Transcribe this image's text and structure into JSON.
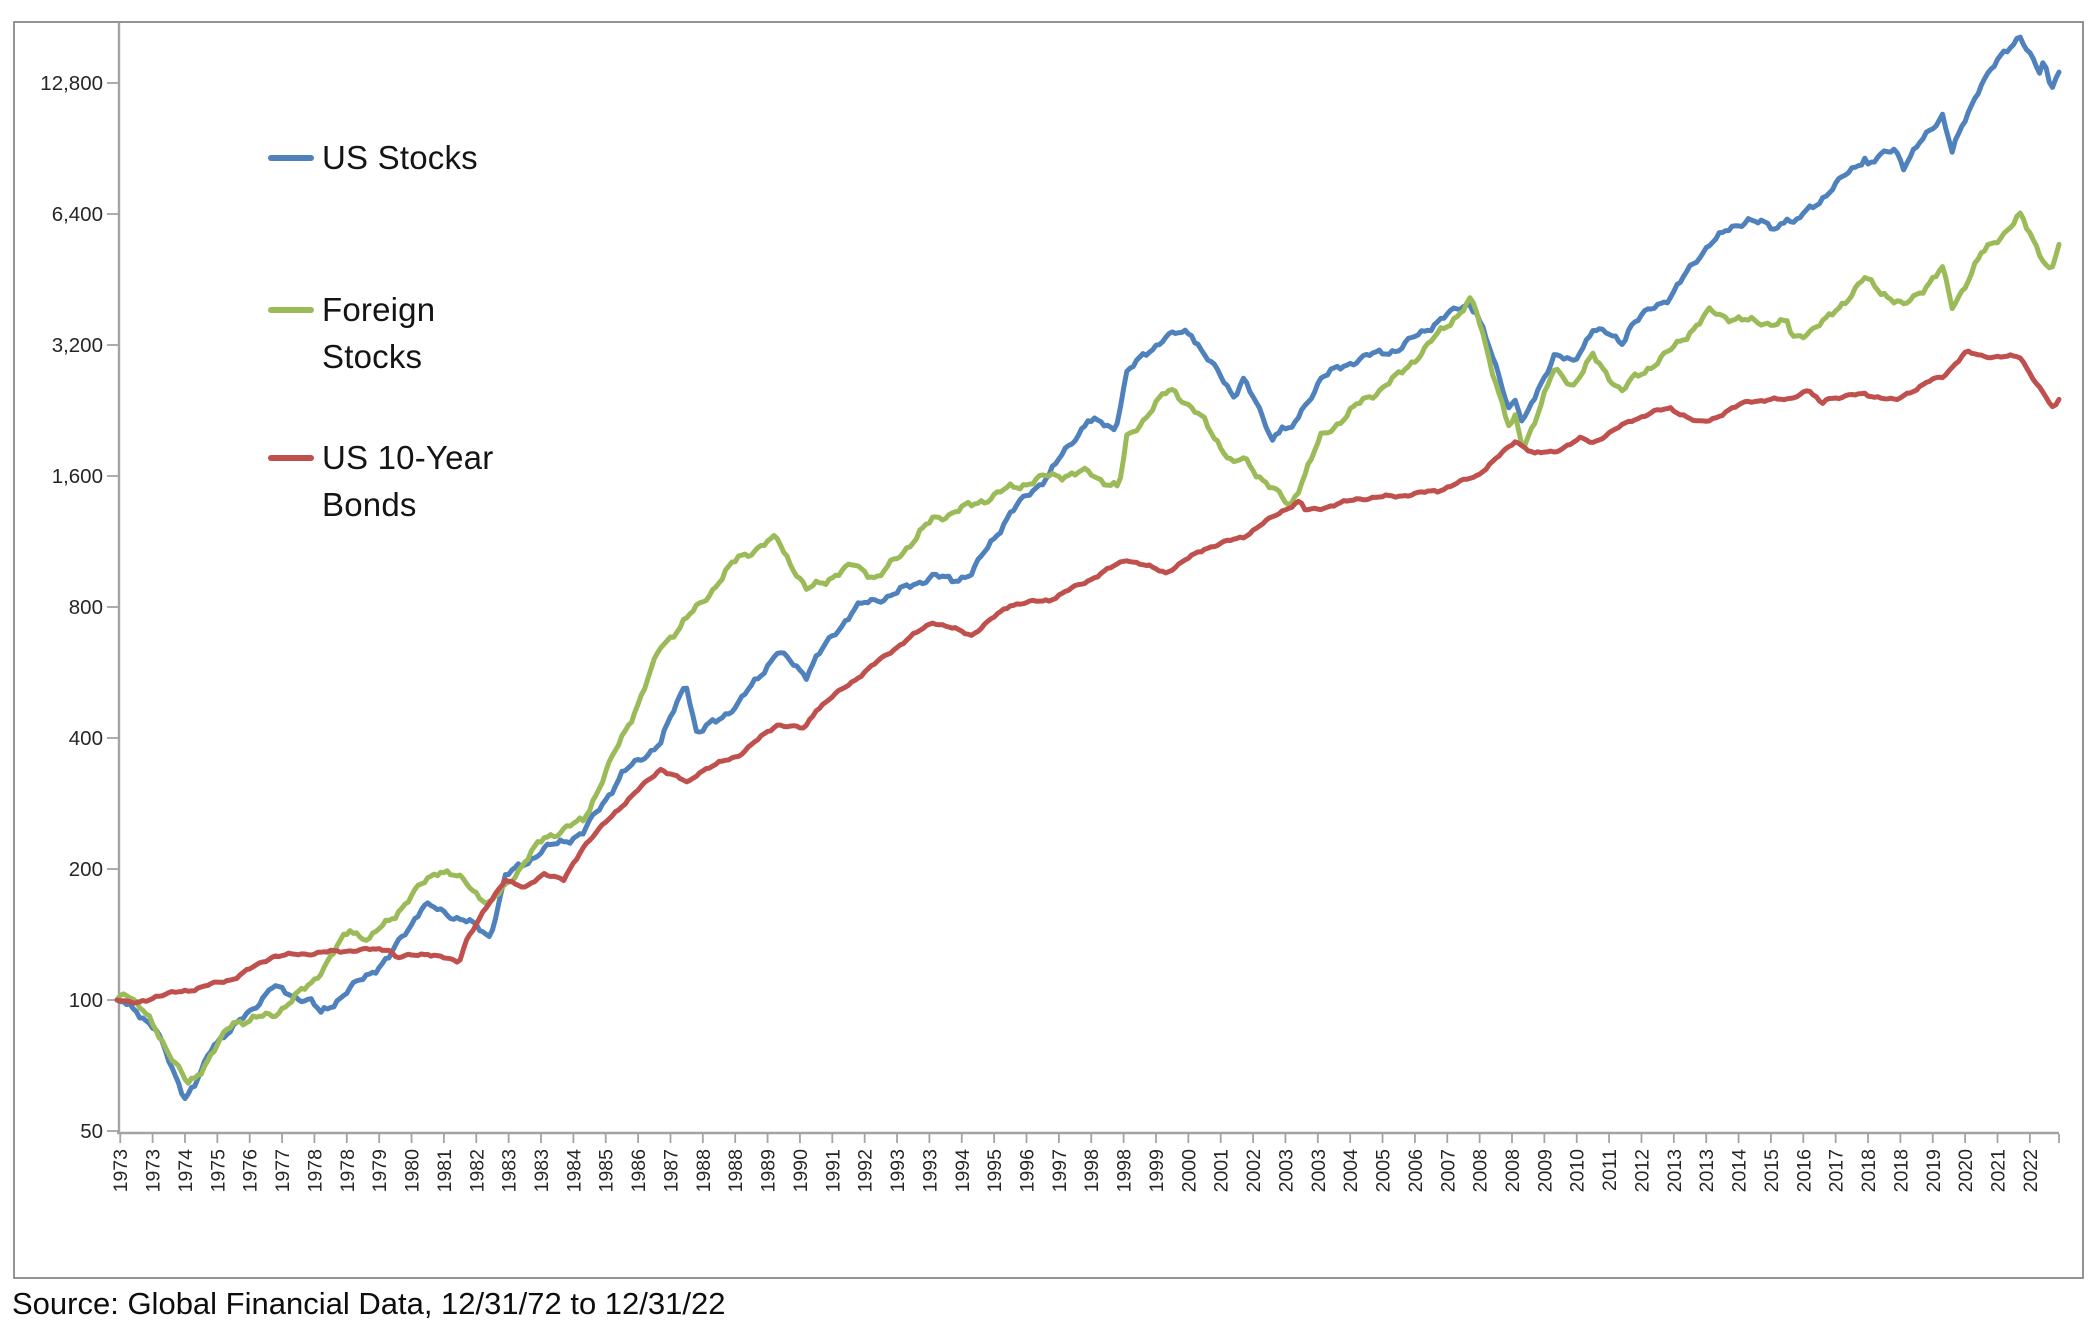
{
  "chart": {
    "legend": [
      {
        "label": "US Stocks",
        "color": "#4F81BD"
      },
      {
        "label": "Foreign Stocks",
        "color": "#9BBB59"
      },
      {
        "label": "US 10-Year Bonds",
        "color": "#C0504D"
      }
    ],
    "source_note": "Source: Global Financial Data, 12/31/72 to 12/31/22",
    "y_axis": {
      "ticks": [
        {
          "label": "12,800",
          "value": 12800
        },
        {
          "label": "6,400",
          "value": 6400
        },
        {
          "label": "3,200",
          "value": 3200
        },
        {
          "label": "1,600",
          "value": 1600
        },
        {
          "label": "800",
          "value": 800
        },
        {
          "label": "400",
          "value": 400
        },
        {
          "label": "200",
          "value": 200
        },
        {
          "label": "100",
          "value": 100
        },
        {
          "label": "50",
          "value": 50
        }
      ]
    },
    "x_axis": {
      "labels": [
        "1973",
        "1973",
        "1974",
        "1975",
        "1976",
        "1977",
        "1978",
        "1978",
        "1979",
        "1980",
        "1981",
        "1982",
        "1983",
        "1983",
        "1984",
        "1985",
        "1986",
        "1987",
        "1988",
        "1988",
        "1989",
        "1990",
        "1991",
        "1992",
        "1993",
        "1993",
        "1994",
        "1995",
        "1996",
        "1997",
        "1998",
        "1998",
        "1999",
        "2000",
        "2001",
        "2002",
        "2003",
        "2003",
        "2004",
        "2005",
        "2006",
        "2007",
        "2008",
        "2008",
        "2009",
        "2010",
        "2011",
        "2012",
        "2013",
        "2013",
        "2014",
        "2015",
        "2016",
        "2017",
        "2018",
        "2018",
        "2019",
        "2020",
        "2021",
        "2022"
      ]
    }
  },
  "chart_data": {
    "type": "line",
    "title": "",
    "xlabel": "",
    "ylabel": "",
    "x_range": "12/31/1972 to 12/31/2022, monthly",
    "y_scale": "log2",
    "ylim": [
      50,
      17000
    ],
    "legend_position": "upper-left",
    "grid": false,
    "x_note": "anchor x is decimal year; 1973.0 = 12/31/1972, 2023.0 = 12/31/2022; values = growth of $100",
    "series": [
      {
        "name": "US Stocks",
        "color": "#4F81BD",
        "anchors": [
          [
            1973,
            100
          ],
          [
            1973.5,
            95
          ],
          [
            1974,
            85
          ],
          [
            1974.75,
            60
          ],
          [
            1975,
            63
          ],
          [
            1975.5,
            80
          ],
          [
            1976,
            86
          ],
          [
            1977,
            107
          ],
          [
            1978,
            99
          ],
          [
            1978.25,
            93
          ],
          [
            1979,
            106
          ],
          [
            1980,
            125
          ],
          [
            1980.9,
            166
          ],
          [
            1981,
            164
          ],
          [
            1982,
            152
          ],
          [
            1982.6,
            140
          ],
          [
            1983,
            192
          ],
          [
            1984,
            222
          ],
          [
            1985,
            242
          ],
          [
            1986,
            330
          ],
          [
            1987,
            391
          ],
          [
            1987.65,
            540
          ],
          [
            1987.95,
            400
          ],
          [
            1988,
            411
          ],
          [
            1989,
            479
          ],
          [
            1990,
            631
          ],
          [
            1990.75,
            560
          ],
          [
            1991,
            611
          ],
          [
            1992,
            797
          ],
          [
            1993,
            858
          ],
          [
            1994,
            944
          ],
          [
            1994.5,
            920
          ],
          [
            1995,
            957
          ],
          [
            1996,
            1316
          ],
          [
            1997,
            1618
          ],
          [
            1998,
            2157
          ],
          [
            1998.7,
            2050
          ],
          [
            1999,
            2774
          ],
          [
            2000,
            3357
          ],
          [
            2000.65,
            3420
          ],
          [
            2001,
            3051
          ],
          [
            2001.75,
            2450
          ],
          [
            2002,
            2688
          ],
          [
            2002.75,
            1950
          ],
          [
            2003,
            2094
          ],
          [
            2003.2,
            2010
          ],
          [
            2004,
            2694
          ],
          [
            2005,
            2987
          ],
          [
            2006,
            3134
          ],
          [
            2007,
            3629
          ],
          [
            2007.8,
            4000
          ],
          [
            2008,
            3828
          ],
          [
            2008.85,
            2300
          ],
          [
            2009,
            2412
          ],
          [
            2009.2,
            2100
          ],
          [
            2010,
            3050
          ],
          [
            2010.5,
            2900
          ],
          [
            2011,
            3509
          ],
          [
            2011.75,
            3250
          ],
          [
            2012,
            3582
          ],
          [
            2013,
            4155
          ],
          [
            2014,
            5500
          ],
          [
            2015,
            6253
          ],
          [
            2015.7,
            5900
          ],
          [
            2016,
            6340
          ],
          [
            2016.15,
            6050
          ],
          [
            2017,
            7098
          ],
          [
            2018,
            8645
          ],
          [
            2018.1,
            8300
          ],
          [
            2018.78,
            9100
          ],
          [
            2019,
            8266
          ],
          [
            2020,
            10868
          ],
          [
            2020.25,
            8900
          ],
          [
            2021,
            12868
          ],
          [
            2022,
            16560
          ],
          [
            2022.1,
            15800
          ],
          [
            2022.5,
            13400
          ],
          [
            2022.6,
            14300
          ],
          [
            2022.8,
            12500
          ],
          [
            2023,
            13560
          ]
        ]
      },
      {
        "name": "Foreign Stocks",
        "color": "#9BBB59",
        "anchors": [
          [
            1973,
            100
          ],
          [
            1973.2,
            106
          ],
          [
            1974,
            86
          ],
          [
            1974.8,
            64
          ],
          [
            1975,
            66
          ],
          [
            1976,
            89
          ],
          [
            1977,
            92
          ],
          [
            1978,
            109
          ],
          [
            1979,
            145
          ],
          [
            1979.5,
            138
          ],
          [
            1980,
            152
          ],
          [
            1981,
            190
          ],
          [
            1981.3,
            200
          ],
          [
            1982,
            186
          ],
          [
            1982.6,
            165
          ],
          [
            1983,
            183
          ],
          [
            1984,
            236
          ],
          [
            1985,
            258
          ],
          [
            1986,
            400
          ],
          [
            1986.5,
            500
          ],
          [
            1987,
            648
          ],
          [
            1988,
            808
          ],
          [
            1989,
            1040
          ],
          [
            1990,
            1150
          ],
          [
            1990.75,
            870
          ],
          [
            1991,
            900
          ],
          [
            1992,
            1000
          ],
          [
            1992.6,
            930
          ],
          [
            1993,
            1020
          ],
          [
            1994,
            1270
          ],
          [
            1995,
            1370
          ],
          [
            1996,
            1500
          ],
          [
            1997,
            1600
          ],
          [
            1998,
            1630
          ],
          [
            1998.8,
            1500
          ],
          [
            1999,
            1950
          ],
          [
            2000,
            2480
          ],
          [
            2000.2,
            2530
          ],
          [
            2001,
            2130
          ],
          [
            2001.75,
            1700
          ],
          [
            2002,
            1750
          ],
          [
            2003,
            1420
          ],
          [
            2003.2,
            1360
          ],
          [
            2004,
            1960
          ],
          [
            2005,
            2350
          ],
          [
            2006,
            2720
          ],
          [
            2007,
            3370
          ],
          [
            2007.85,
            4050
          ],
          [
            2008,
            3800
          ],
          [
            2008.85,
            2050
          ],
          [
            2009,
            2160
          ],
          [
            2009.2,
            1850
          ],
          [
            2010,
            2790
          ],
          [
            2010.5,
            2600
          ],
          [
            2011,
            3010
          ],
          [
            2011.75,
            2500
          ],
          [
            2012,
            2650
          ],
          [
            2013,
            3100
          ],
          [
            2014,
            3810
          ],
          [
            2015,
            3620
          ],
          [
            2016,
            3590
          ],
          [
            2016.15,
            3300
          ],
          [
            2017,
            3630
          ],
          [
            2018,
            4540
          ],
          [
            2019,
            3910
          ],
          [
            2020,
            4780
          ],
          [
            2020.25,
            3900
          ],
          [
            2021,
            5160
          ],
          [
            2022,
            6320
          ],
          [
            2022.8,
            4700
          ],
          [
            2023,
            5450
          ]
        ]
      },
      {
        "name": "US 10-Year Bonds",
        "color": "#C0504D",
        "anchors": [
          [
            1973,
            100
          ],
          [
            1973.5,
            98
          ],
          [
            1974,
            102
          ],
          [
            1975,
            106
          ],
          [
            1976,
            112
          ],
          [
            1977,
            126
          ],
          [
            1978,
            128
          ],
          [
            1979,
            130
          ],
          [
            1980,
            131
          ],
          [
            1980.2,
            125
          ],
          [
            1981,
            128
          ],
          [
            1981.8,
            122
          ],
          [
            1982,
            138
          ],
          [
            1983,
            190
          ],
          [
            1983.5,
            180
          ],
          [
            1984,
            196
          ],
          [
            1984.5,
            188
          ],
          [
            1985,
            225
          ],
          [
            1986,
            280
          ],
          [
            1987,
            340
          ],
          [
            1987.7,
            315
          ],
          [
            1988,
            335
          ],
          [
            1989,
            365
          ],
          [
            1990,
            430
          ],
          [
            1990.7,
            420
          ],
          [
            1991,
            465
          ],
          [
            1992,
            545
          ],
          [
            1993,
            640
          ],
          [
            1994,
            740
          ],
          [
            1995,
            690
          ],
          [
            1996,
            810
          ],
          [
            1997,
            830
          ],
          [
            1998,
            920
          ],
          [
            1999,
            1030
          ],
          [
            2000,
            960
          ],
          [
            2001,
            1090
          ],
          [
            2002,
            1160
          ],
          [
            2003,
            1330
          ],
          [
            2003.45,
            1400
          ],
          [
            2003.6,
            1330
          ],
          [
            2004,
            1350
          ],
          [
            2005,
            1420
          ],
          [
            2006,
            1440
          ],
          [
            2007,
            1480
          ],
          [
            2008,
            1600
          ],
          [
            2008.95,
            1900
          ],
          [
            2009,
            1930
          ],
          [
            2009.5,
            1800
          ],
          [
            2010,
            1820
          ],
          [
            2010.7,
            1950
          ],
          [
            2011,
            1910
          ],
          [
            2012,
            2150
          ],
          [
            2012.6,
            2250
          ],
          [
            2013,
            2290
          ],
          [
            2013.7,
            2120
          ],
          [
            2014,
            2150
          ],
          [
            2015,
            2380
          ],
          [
            2016,
            2400
          ],
          [
            2016.55,
            2520
          ],
          [
            2016.9,
            2330
          ],
          [
            2017,
            2410
          ],
          [
            2018,
            2470
          ],
          [
            2018.8,
            2380
          ],
          [
            2019,
            2450
          ],
          [
            2019.7,
            2650
          ],
          [
            2020,
            2700
          ],
          [
            2020.6,
            3080
          ],
          [
            2021,
            3020
          ],
          [
            2022,
            3000
          ],
          [
            2022.85,
            2280
          ],
          [
            2023,
            2400
          ]
        ]
      }
    ]
  }
}
